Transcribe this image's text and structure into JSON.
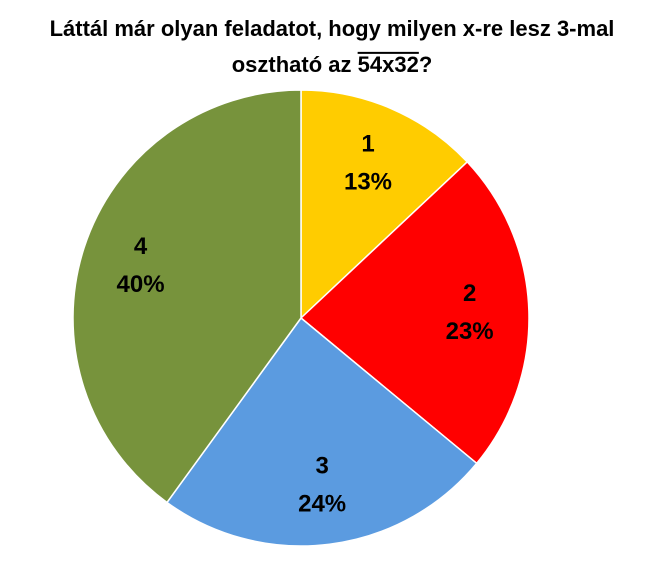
{
  "chart_data": {
    "type": "pie",
    "title": {
      "line1": "Láttál már olyan feladatot, hogy milyen x-re lesz 3-mal",
      "line2": "osztható az",
      "overlined": "54x32",
      "end": "?"
    },
    "categories": [
      "1",
      "2",
      "3",
      "4"
    ],
    "values": [
      13,
      23,
      24,
      40
    ],
    "value_labels": [
      "13%",
      "23%",
      "24%",
      "40%"
    ],
    "colors": [
      "#ffcc00",
      "#ff0000",
      "#5b9be0",
      "#77933c"
    ]
  }
}
